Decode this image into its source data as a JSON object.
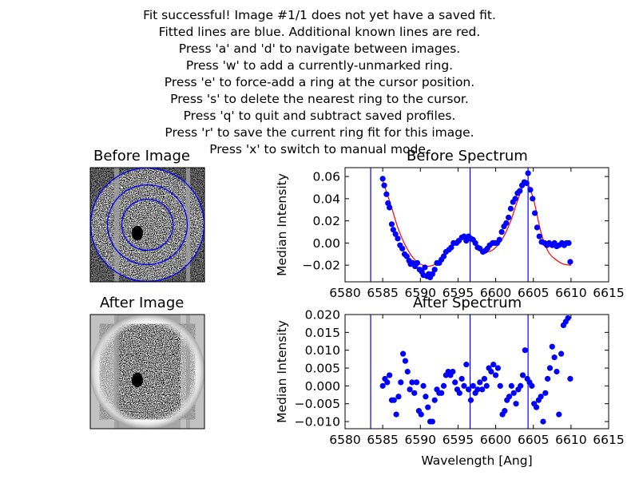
{
  "instructions": [
    "Fit successful! Image #1/1 does not yet have a saved fit.",
    "Fitted lines are blue. Additional known lines are red.",
    "Press 'a' and 'd' to navigate between images.",
    "Press 'w' to add a currently-unmarked ring.",
    "Press 'e' to force-add a ring at the cursor position.",
    "Press 's' to delete the nearest ring to the cursor.",
    "Press 'q' to quit and subtract saved profiles.",
    "Press 'r' to save the current ring fit for this image.",
    "Press 'x' to switch to manual mode."
  ],
  "images": {
    "before_title": "Before Image",
    "after_title": "After Image"
  },
  "colors": {
    "data": "#0000ff",
    "fit": "#ff0000",
    "line": "#0000ff",
    "axis": "#000000"
  },
  "chart_data": [
    {
      "type": "scatter",
      "title": "Before Spectrum",
      "xlabel": "",
      "ylabel": "Median Intensity",
      "xlim": [
        6580,
        6615
      ],
      "ylim": [
        -0.035,
        0.068
      ],
      "xticks": [
        6580,
        6585,
        6590,
        6595,
        6600,
        6605,
        6610,
        6615
      ],
      "yticks": [
        -0.02,
        0.0,
        0.02,
        0.04,
        0.06
      ],
      "ytick_labels": [
        "−0.02",
        "0.00",
        "0.02",
        "0.04",
        "0.06"
      ],
      "vlines": [
        6583.4,
        6596.6,
        6604.3
      ],
      "points": {
        "x": [
          6585.0,
          6585.2,
          6585.5,
          6585.7,
          6585.9,
          6586.2,
          6586.4,
          6586.7,
          6587.0,
          6587.3,
          6587.6,
          6587.9,
          6588.2,
          6588.5,
          6588.7,
          6589.0,
          6589.3,
          6589.6,
          6589.9,
          6590.2,
          6590.4,
          6590.6,
          6590.9,
          6591.1,
          6591.3,
          6591.6,
          6591.9,
          6592.2,
          6592.5,
          6592.8,
          6593.1,
          6593.4,
          6593.8,
          6594.1,
          6594.4,
          6594.8,
          6595.1,
          6595.5,
          6595.8,
          6596.1,
          6596.4,
          6596.7,
          6597.0,
          6597.3,
          6597.6,
          6597.9,
          6598.3,
          6598.6,
          6598.9,
          6599.2,
          6599.6,
          6599.9,
          6600.2,
          6600.5,
          6600.8,
          6601.1,
          6601.4,
          6601.7,
          6602.0,
          6602.3,
          6602.6,
          6602.9,
          6603.2,
          6603.5,
          6603.8,
          6604.1,
          6604.3,
          6604.6,
          6604.9,
          6605.2,
          6605.5,
          6605.8,
          6606.1,
          6606.5,
          6606.8,
          6607.1,
          6607.5,
          6607.8,
          6608.1,
          6608.4,
          6608.8,
          6609.1,
          6609.4,
          6609.7,
          6609.9
        ],
        "y": [
          0.058,
          0.052,
          0.044,
          0.036,
          0.032,
          0.017,
          0.012,
          0.008,
          0.004,
          -0.002,
          -0.005,
          -0.01,
          -0.012,
          -0.016,
          -0.019,
          -0.018,
          -0.021,
          -0.018,
          -0.024,
          -0.026,
          -0.029,
          -0.022,
          -0.03,
          -0.028,
          -0.031,
          -0.028,
          -0.024,
          -0.018,
          -0.018,
          -0.015,
          -0.012,
          -0.008,
          -0.006,
          -0.004,
          0.0,
          0.0,
          0.002,
          0.005,
          0.006,
          0.002,
          0.006,
          0.004,
          0.003,
          0.0,
          -0.004,
          -0.005,
          -0.008,
          -0.007,
          -0.005,
          -0.002,
          0.0,
          0.0,
          0.0,
          0.003,
          0.01,
          0.015,
          0.018,
          0.023,
          0.031,
          0.037,
          0.04,
          0.045,
          0.047,
          0.052,
          0.055,
          0.054,
          0.063,
          0.048,
          0.04,
          0.027,
          0.014,
          0.006,
          0.001,
          0.0,
          -0.002,
          0.0,
          -0.002,
          0.0,
          -0.003,
          -0.002,
          0.0,
          -0.002,
          0.0,
          0.0,
          -0.017
        ]
      },
      "fit_curve": {
        "x": [
          6584.8,
          6586,
          6587,
          6588,
          6589,
          6590,
          6591,
          6592,
          6593,
          6594,
          6595,
          6596,
          6597,
          6598,
          6599,
          6600,
          6601,
          6602,
          6603,
          6604,
          6605,
          6606,
          6607,
          6608,
          6609,
          6610
        ],
        "y": [
          0.06,
          0.036,
          0.014,
          -0.002,
          -0.013,
          -0.019,
          -0.021,
          -0.019,
          -0.013,
          -0.005,
          0.002,
          0.005,
          0.002,
          -0.005,
          -0.008,
          -0.004,
          0.005,
          0.02,
          0.04,
          0.055,
          0.04,
          0.01,
          -0.008,
          -0.015,
          -0.019,
          -0.02
        ]
      }
    },
    {
      "type": "scatter",
      "title": "After Spectrum",
      "xlabel": "Wavelength [Ang]",
      "ylabel": "Median Intensity",
      "xlim": [
        6580,
        6615
      ],
      "ylim": [
        -0.012,
        0.02
      ],
      "xticks": [
        6580,
        6585,
        6590,
        6595,
        6600,
        6605,
        6610,
        6615
      ],
      "yticks": [
        -0.01,
        -0.005,
        0.0,
        0.005,
        0.01,
        0.015,
        0.02
      ],
      "ytick_labels": [
        "−0.010",
        "−0.005",
        "0.000",
        "0.005",
        "0.010",
        "0.015",
        "0.020"
      ],
      "vlines": [
        6583.4,
        6596.6,
        6604.3
      ],
      "points": {
        "x": [
          6585.0,
          6585.3,
          6585.6,
          6585.9,
          6586.2,
          6586.5,
          6586.8,
          6587.1,
          6587.4,
          6587.7,
          6588.0,
          6588.3,
          6588.6,
          6588.9,
          6589.2,
          6589.5,
          6589.8,
          6590.1,
          6590.4,
          6590.7,
          6591.0,
          6591.3,
          6591.6,
          6591.9,
          6592.2,
          6592.5,
          6592.8,
          6593.1,
          6593.4,
          6593.7,
          6594.0,
          6594.3,
          6594.6,
          6594.9,
          6595.2,
          6595.5,
          6595.8,
          6596.1,
          6596.4,
          6596.7,
          6597.0,
          6597.3,
          6597.6,
          6597.9,
          6598.2,
          6598.5,
          6598.8,
          6599.1,
          6599.4,
          6599.7,
          6600.0,
          6600.3,
          6600.6,
          6600.9,
          6601.2,
          6601.5,
          6601.8,
          6602.1,
          6602.4,
          6602.7,
          6603.0,
          6603.3,
          6603.6,
          6603.9,
          6604.2,
          6604.5,
          6604.8,
          6605.1,
          6605.4,
          6605.7,
          6606.0,
          6606.3,
          6606.6,
          6606.9,
          6607.2,
          6607.5,
          6607.8,
          6608.1,
          6608.4,
          6608.7,
          6609.0,
          6609.3,
          6609.6,
          6609.9
        ],
        "y": [
          0.0,
          0.002,
          0.001,
          0.003,
          -0.004,
          -0.004,
          -0.008,
          -0.003,
          0.001,
          0.009,
          0.007,
          0.004,
          -0.001,
          0.001,
          -0.002,
          0.001,
          -0.007,
          -0.008,
          0.0,
          -0.003,
          -0.006,
          -0.01,
          -0.01,
          -0.004,
          -0.001,
          -0.002,
          -0.002,
          0.0,
          0.003,
          0.004,
          0.003,
          0.004,
          0.001,
          -0.001,
          -0.002,
          0.002,
          0.0,
          0.006,
          -0.001,
          -0.004,
          0.0,
          -0.002,
          -0.001,
          0.001,
          -0.001,
          0.002,
          0.0,
          0.005,
          0.004,
          0.006,
          0.003,
          0.005,
          0.0,
          -0.008,
          -0.007,
          -0.004,
          -0.003,
          0.0,
          -0.002,
          -0.005,
          -0.001,
          0.0,
          0.003,
          0.01,
          0.002,
          0.001,
          0.0,
          -0.005,
          -0.006,
          -0.004,
          -0.003,
          -0.01,
          -0.002,
          0.002,
          0.005,
          0.011,
          0.008,
          0.004,
          -0.008,
          0.009,
          0.017,
          0.018,
          0.019,
          0.002
        ]
      }
    }
  ]
}
